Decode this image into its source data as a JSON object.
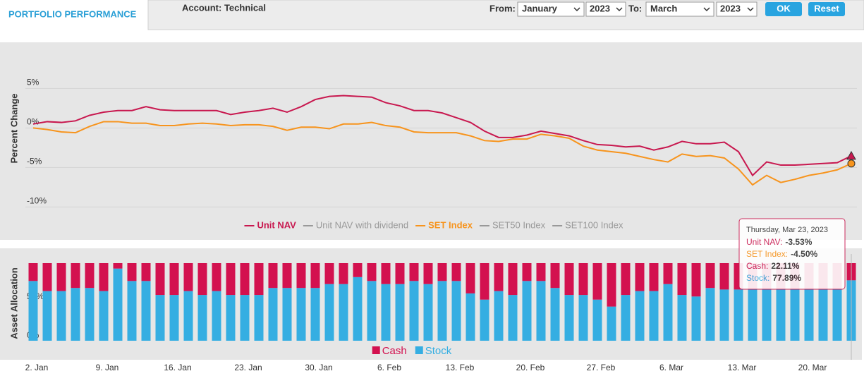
{
  "header": {
    "tab": "PORTFOLIO PERFORMANCE",
    "account": "Account: Technical",
    "from_label": "From:",
    "from_month": "January",
    "from_year": "2023",
    "to_label": "To:",
    "to_month": "March",
    "to_year": "2023",
    "ok": "OK",
    "reset": "Reset"
  },
  "chart_data": [
    {
      "type": "line",
      "y_label": "Percent Change",
      "ylim": [
        -10.5,
        9.5
      ],
      "yticks": [
        {
          "value": -10,
          "label": "-10%"
        },
        {
          "value": -5,
          "label": "-5%"
        },
        {
          "value": 0,
          "label": "0%"
        },
        {
          "value": 5,
          "label": "5%"
        }
      ],
      "series": [
        {
          "name": "Unit NAV",
          "color": "#c8184f",
          "visible": true,
          "marker": "triangle",
          "values": [
            0.5,
            0.8,
            0.7,
            0.9,
            1.6,
            2.0,
            2.2,
            2.2,
            2.7,
            2.3,
            2.2,
            2.2,
            2.2,
            2.2,
            1.7,
            2.0,
            2.2,
            2.5,
            2.0,
            2.7,
            3.6,
            4.0,
            4.1,
            4.0,
            3.9,
            3.2,
            2.8,
            2.2,
            2.2,
            1.9,
            1.3,
            0.7,
            -0.4,
            -1.2,
            -1.2,
            -0.9,
            -0.4,
            -0.7,
            -1.0,
            -1.6,
            -2.1,
            -2.2,
            -2.4,
            -2.3,
            -2.8,
            -2.4,
            -1.7,
            -2.0,
            -2.0,
            -1.8,
            -3.0,
            -6.0,
            -4.3,
            -4.7,
            -4.7,
            -4.6,
            -4.5,
            -4.4,
            -3.53
          ]
        },
        {
          "name": "Unit NAV with dividend",
          "color": "#888888",
          "visible": false
        },
        {
          "name": "SET Index",
          "color": "#f7941d",
          "visible": true,
          "marker": "circle",
          "values": [
            0.0,
            -0.2,
            -0.5,
            -0.6,
            0.2,
            0.8,
            0.8,
            0.6,
            0.6,
            0.3,
            0.3,
            0.5,
            0.6,
            0.5,
            0.3,
            0.4,
            0.4,
            0.2,
            -0.3,
            0.1,
            0.1,
            -0.1,
            0.5,
            0.5,
            0.7,
            0.3,
            0.1,
            -0.5,
            -0.6,
            -0.6,
            -0.6,
            -1.0,
            -1.6,
            -1.7,
            -1.4,
            -1.4,
            -0.8,
            -1.0,
            -1.3,
            -2.3,
            -2.8,
            -3.0,
            -3.2,
            -3.6,
            -4.0,
            -4.3,
            -3.3,
            -3.6,
            -3.5,
            -3.8,
            -5.2,
            -7.2,
            -6.0,
            -6.9,
            -6.5,
            -6.0,
            -5.7,
            -5.3,
            -4.5
          ]
        },
        {
          "name": "SET50 Index",
          "color": "#888888",
          "visible": false
        },
        {
          "name": "SET100 Index",
          "color": "#888888",
          "visible": false
        }
      ],
      "tooltip": {
        "date": "Thursday, Mar 23, 2023",
        "rows": [
          {
            "label": "Unit NAV:",
            "value": "-3.53%",
            "color": "#c8184f"
          },
          {
            "label": "SET Index:",
            "value": "-4.50%",
            "color": "#f7941d"
          },
          {
            "label": "Cash:",
            "value": "22.11%",
            "color": "#c8184f"
          },
          {
            "label": "Stock:",
            "value": "77.89%",
            "color": "#35aee2"
          }
        ]
      }
    },
    {
      "type": "stacked_bar",
      "y_label": "Asset Allocation",
      "ylim": [
        0,
        100
      ],
      "yticks": [
        {
          "value": 0,
          "label": "0%"
        },
        {
          "value": 50,
          "label": "50%"
        }
      ],
      "categories": [
        "2. Jan",
        null,
        null,
        null,
        null,
        "9. Jan",
        null,
        null,
        null,
        null,
        "16. Jan",
        null,
        null,
        null,
        null,
        "23. Jan",
        null,
        null,
        null,
        null,
        "30. Jan",
        null,
        null,
        null,
        null,
        "6. Feb",
        null,
        null,
        null,
        null,
        "13. Feb",
        null,
        null,
        null,
        null,
        "20. Feb",
        null,
        null,
        null,
        null,
        "27. Feb",
        null,
        null,
        null,
        null,
        "6. Mar",
        null,
        null,
        null,
        null,
        "13. Mar",
        null,
        null,
        null,
        null,
        "20. Mar",
        null,
        null,
        null
      ],
      "series": [
        {
          "name": "Cash",
          "color": "#d3114f",
          "values": [
            23,
            36,
            36,
            32,
            32,
            36,
            7,
            23,
            23,
            41,
            41,
            36,
            41,
            36,
            41,
            41,
            41,
            32,
            32,
            32,
            32,
            27,
            27,
            18,
            23,
            27,
            27,
            23,
            27,
            23,
            23,
            39,
            47,
            36,
            41,
            23,
            23,
            32,
            41,
            41,
            47,
            56,
            41,
            36,
            36,
            27,
            41,
            43,
            32,
            34,
            34,
            34,
            34,
            34,
            34,
            34,
            34,
            34,
            22.11
          ]
        },
        {
          "name": "Stock",
          "color": "#35aee2",
          "values": [
            77,
            64,
            64,
            68,
            68,
            64,
            93,
            77,
            77,
            59,
            59,
            64,
            59,
            64,
            59,
            59,
            59,
            68,
            68,
            68,
            68,
            73,
            73,
            82,
            77,
            73,
            73,
            77,
            73,
            77,
            77,
            61,
            53,
            64,
            59,
            77,
            77,
            68,
            59,
            59,
            53,
            44,
            59,
            64,
            64,
            73,
            59,
            57,
            68,
            66,
            66,
            66,
            66,
            66,
            66,
            66,
            66,
            66,
            77.89
          ]
        }
      ]
    }
  ]
}
